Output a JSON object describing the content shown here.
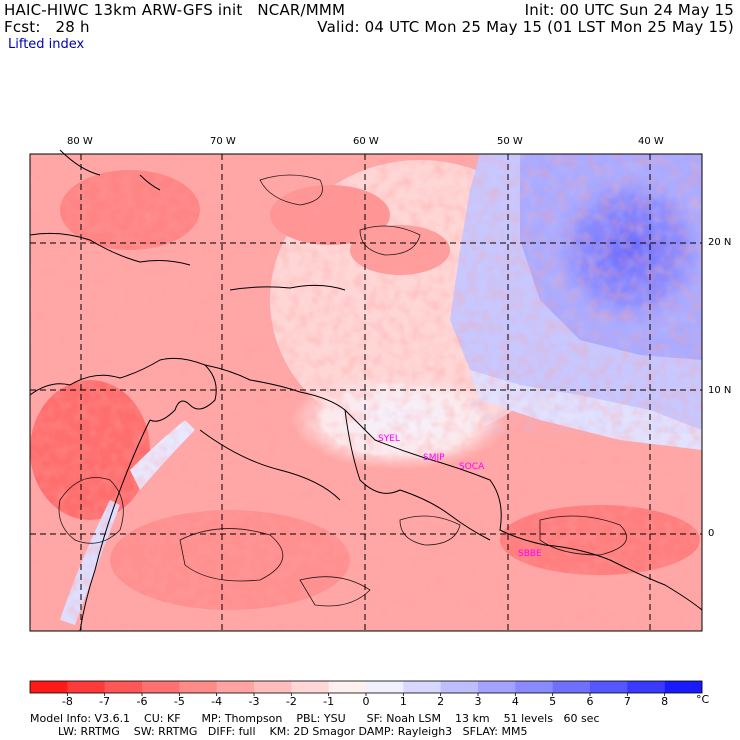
{
  "header": {
    "line1_left": "HAIC-HIWC 13km ARW-GFS init   NCAR/MMM",
    "line1_right": "Init: 00 UTC Sun 24 May 15",
    "line2_left": "Fcst:   28 h",
    "line2_right": "Valid: 04 UTC Mon 25 May 15 (01 LST Mon 25 May 15)",
    "field": "Lifted index"
  },
  "map": {
    "longitudes": [
      "80 W",
      "70 W",
      "60 W",
      "50 W",
      "40 W"
    ],
    "latitudes": [
      "20 N",
      "10 N",
      "0"
    ],
    "stations": [
      "SYEL",
      "SMJP",
      "SOCA",
      "SBBE"
    ],
    "colors": {
      "station_label": "#ff00ff",
      "coast": "#000000",
      "grid": "#000000"
    }
  },
  "colorbar": {
    "labels": [
      "-8",
      "-7",
      "-6",
      "-5",
      "-4",
      "-3",
      "-2",
      "-1",
      "0",
      "1",
      "2",
      "3",
      "4",
      "5",
      "6",
      "7",
      "8"
    ],
    "unit": "°C",
    "colors": [
      "#ff1a1a",
      "#ff3a3a",
      "#ff5656",
      "#ff7070",
      "#ff8a8a",
      "#ffa3a3",
      "#ffbdbd",
      "#ffd7d7",
      "#fff0f0",
      "#f0f0ff",
      "#d7d7ff",
      "#bdbdff",
      "#a3a3ff",
      "#8a8aff",
      "#7070ff",
      "#5656ff",
      "#3a3aff",
      "#1a1aff"
    ]
  },
  "footer": {
    "line1": "Model Info: V3.6.1    CU: KF      MP: Thompson    PBL: YSU      SF: Noah LSM    13 km    51 levels   60 sec",
    "line2": "        LW: RRTMG    SW: RRTMG   DIFF: full    KM: 2D Smagor DAMP: Rayleigh3   SFLAY: MM5"
  }
}
